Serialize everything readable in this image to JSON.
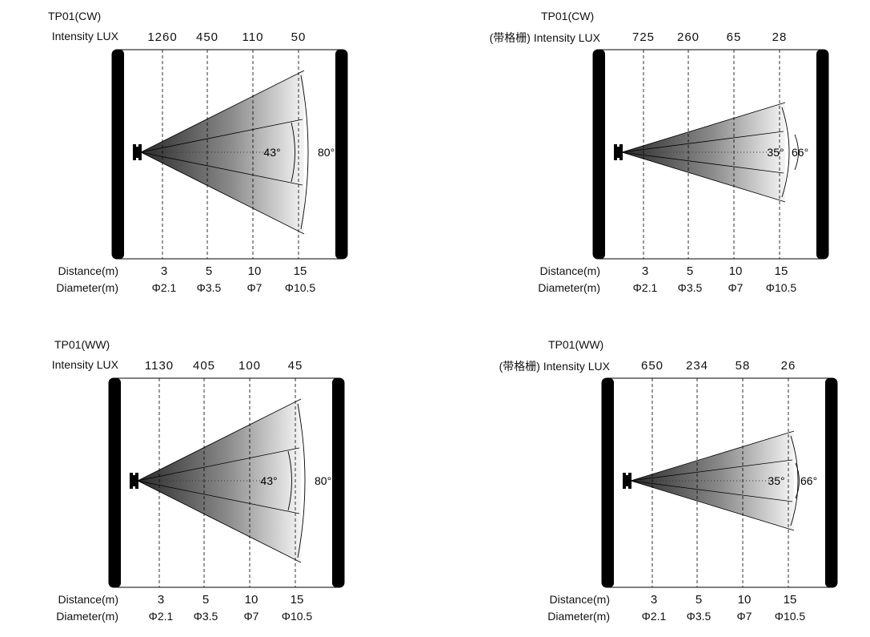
{
  "panels": [
    {
      "title": "TP01(CW)",
      "intensity_label": "Intensity LUX",
      "lux": [
        "1260",
        "450",
        "110",
        "50"
      ],
      "distance_label": "Distance(m)",
      "distances": [
        "3",
        "5",
        "10",
        "15"
      ],
      "diameter_label": "Diameter(m)",
      "diameters": [
        "Φ2.1",
        "Φ3.5",
        "Φ7",
        "Φ10.5"
      ],
      "inner_angle": "43°",
      "outer_angle": "80°"
    },
    {
      "title": "TP01(CW)",
      "intensity_label": "(带格栅) Intensity LUX",
      "lux": [
        "725",
        "260",
        "65",
        "28"
      ],
      "distance_label": "Distance(m)",
      "distances": [
        "3",
        "5",
        "10",
        "15"
      ],
      "diameter_label": "Diameter(m)",
      "diameters": [
        "Φ2.1",
        "Φ3.5",
        "Φ7",
        "Φ10.5"
      ],
      "inner_angle": "35°",
      "outer_angle": "66°"
    },
    {
      "title": "TP01(WW)",
      "intensity_label": "Intensity LUX",
      "lux": [
        "1130",
        "405",
        "100",
        "45"
      ],
      "distance_label": "Distance(m)",
      "distances": [
        "3",
        "5",
        "10",
        "15"
      ],
      "diameter_label": "Diameter(m)",
      "diameters": [
        "Φ2.1",
        "Φ3.5",
        "Φ7",
        "Φ10.5"
      ],
      "inner_angle": "43°",
      "outer_angle": "80°"
    },
    {
      "title": "TP01(WW)",
      "intensity_label": "(带格栅) Intensity LUX",
      "lux": [
        "650",
        "234",
        "58",
        "26"
      ],
      "distance_label": "Distance(m)",
      "distances": [
        "3",
        "5",
        "10",
        "15"
      ],
      "diameter_label": "Diameter(m)",
      "diameters": [
        "Φ2.1",
        "Φ3.5",
        "Φ7",
        "Φ10.5"
      ],
      "inner_angle": "35°",
      "outer_angle": "66°"
    }
  ]
}
